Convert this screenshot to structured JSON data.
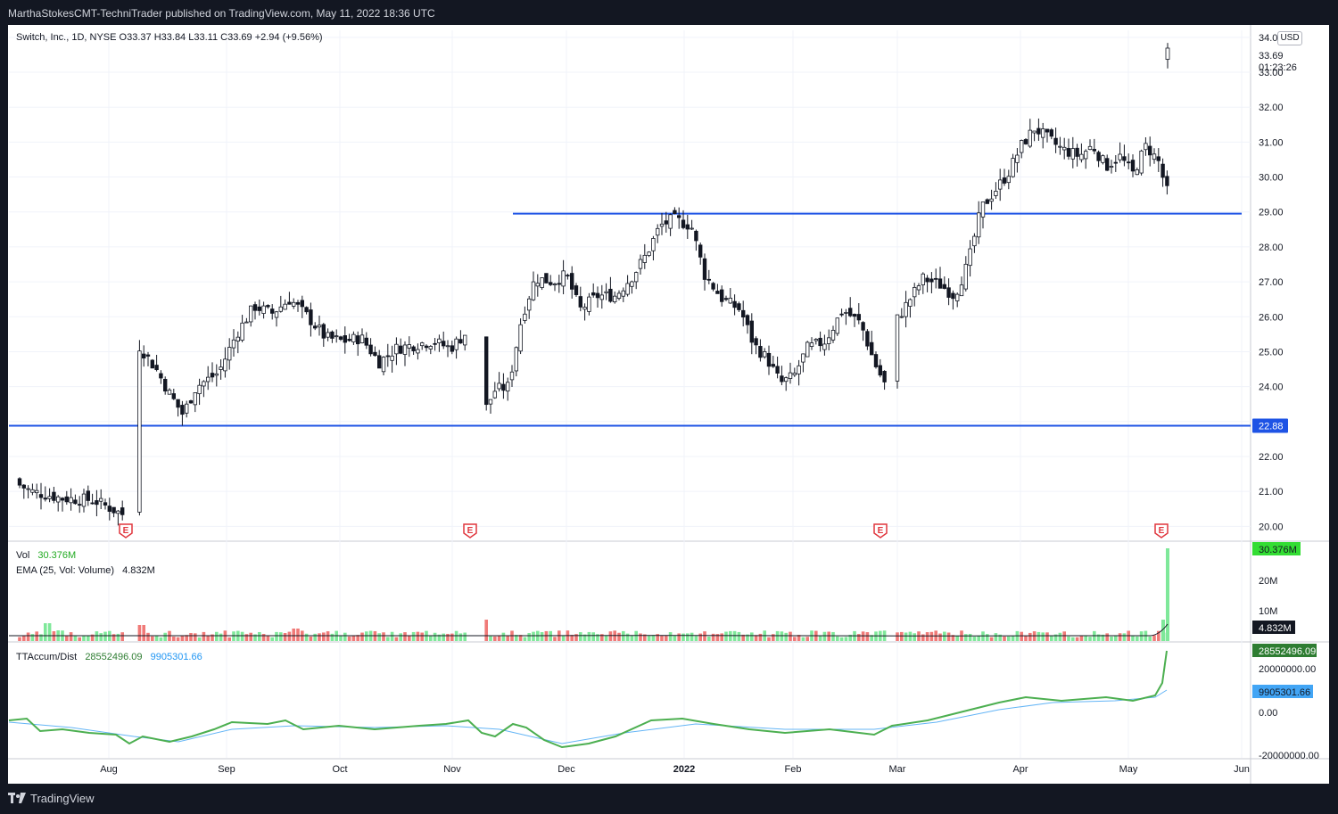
{
  "header": {
    "publish_text": "MarthaStokesCMT-TechniTrader published on TradingView.com, May 11, 2022 18:36 UTC"
  },
  "footer": {
    "brand": "TradingView"
  },
  "price_pane": {
    "symbol": "Switch, Inc., 1D, NYSE",
    "open": "O33.37",
    "high": "H33.84",
    "low": "L33.11",
    "close": "C33.69",
    "change": "+2.94 (+9.56%)",
    "currency": "USD",
    "last_price_label": "33.69",
    "countdown": "01:23:26",
    "support_label": "22.88"
  },
  "volume_pane": {
    "vol_label": "Vol",
    "vol_value": "30.376M",
    "ema_label": "EMA (25, Vol: Volume)",
    "ema_value": "4.832M",
    "vol_badge": "30.376M",
    "ema_badge": "4.832M",
    "ticks": [
      "20M",
      "10M"
    ]
  },
  "indicator_pane": {
    "name": "TTAccum/Dist",
    "value1": "28552496.09",
    "value2": "9905301.66",
    "badge1": "28552496.09",
    "badge2": "9905301.66",
    "ticks": [
      "20000000.00",
      "0.00",
      "-20000000.00"
    ]
  },
  "colors": {
    "up_vol": "#7fe89a",
    "down_vol": "#f07a78",
    "hline": "#2962ff",
    "accum": "#4caf50",
    "accum_signal": "#64b5f6",
    "price_label_bg": "#131722",
    "vol_badge_bg": "#33dd33"
  },
  "chart_data": {
    "type": "candlestick",
    "ylim": [
      19.6,
      34.2
    ],
    "yticks": [
      "34.00",
      "33.00",
      "32.00",
      "31.00",
      "30.00",
      "29.00",
      "28.00",
      "27.00",
      "26.00",
      "25.00",
      "24.00",
      "23.00",
      "22.00",
      "21.00",
      "20.00"
    ],
    "xticks": [
      "Aug",
      "Sep",
      "Oct",
      "Nov",
      "Dec",
      "2022",
      "Feb",
      "Mar",
      "Apr",
      "May",
      "Jun"
    ],
    "horizontal_lines": [
      {
        "value": 28.95,
        "label": ""
      },
      {
        "value": 22.88,
        "label": "22.88"
      }
    ],
    "earnings_markers": [
      "E",
      "E",
      "E",
      "E"
    ],
    "price_path": [
      [
        0,
        21.35
      ],
      [
        25,
        21.0
      ],
      [
        60,
        20.8
      ],
      [
        95,
        20.75
      ],
      [
        115,
        20.5
      ],
      [
        131,
        20.3
      ],
      [
        145,
        25.2
      ],
      [
        165,
        24.5
      ],
      [
        180,
        23.8
      ],
      [
        195,
        23.2
      ],
      [
        210,
        24.0
      ],
      [
        235,
        24.4
      ],
      [
        255,
        25.5
      ],
      [
        275,
        26.3
      ],
      [
        295,
        26.1
      ],
      [
        315,
        26.5
      ],
      [
        335,
        26.0
      ],
      [
        355,
        25.4
      ],
      [
        375,
        25.3
      ],
      [
        395,
        25.4
      ],
      [
        415,
        24.7
      ],
      [
        435,
        25.1
      ],
      [
        455,
        25.2
      ],
      [
        475,
        25.3
      ],
      [
        495,
        25.1
      ],
      [
        515,
        25.6
      ],
      [
        533,
        23.3
      ],
      [
        545,
        23.9
      ],
      [
        560,
        24.0
      ],
      [
        575,
        26.0
      ],
      [
        590,
        27.1
      ],
      [
        610,
        27.0
      ],
      [
        625,
        27.2
      ],
      [
        640,
        26.2
      ],
      [
        660,
        26.6
      ],
      [
        680,
        26.6
      ],
      [
        700,
        27.2
      ],
      [
        715,
        27.8
      ],
      [
        730,
        28.6
      ],
      [
        745,
        28.8
      ],
      [
        765,
        28.6
      ],
      [
        780,
        27.2
      ],
      [
        800,
        26.5
      ],
      [
        820,
        26.2
      ],
      [
        835,
        25.2
      ],
      [
        850,
        24.8
      ],
      [
        865,
        24.1
      ],
      [
        880,
        24.3
      ],
      [
        895,
        25.1
      ],
      [
        915,
        25.3
      ],
      [
        935,
        26.2
      ],
      [
        955,
        25.8
      ],
      [
        970,
        24.7
      ],
      [
        985,
        23.9
      ],
      [
        995,
        25.9
      ],
      [
        1010,
        26.5
      ],
      [
        1025,
        27.1
      ],
      [
        1045,
        26.9
      ],
      [
        1060,
        26.6
      ],
      [
        1075,
        27.5
      ],
      [
        1090,
        29.1
      ],
      [
        1105,
        29.6
      ],
      [
        1120,
        30.1
      ],
      [
        1135,
        30.9
      ],
      [
        1150,
        31.4
      ],
      [
        1165,
        31.1
      ],
      [
        1180,
        30.8
      ],
      [
        1200,
        30.6
      ],
      [
        1215,
        30.9
      ],
      [
        1230,
        30.3
      ],
      [
        1245,
        30.6
      ],
      [
        1260,
        30.1
      ],
      [
        1275,
        30.9
      ],
      [
        1290,
        30.4
      ],
      [
        1298,
        29.5
      ],
      [
        1303,
        30.6
      ]
    ],
    "last_bar": {
      "open": 33.37,
      "high": 33.84,
      "low": 33.11,
      "close": 33.69
    }
  }
}
